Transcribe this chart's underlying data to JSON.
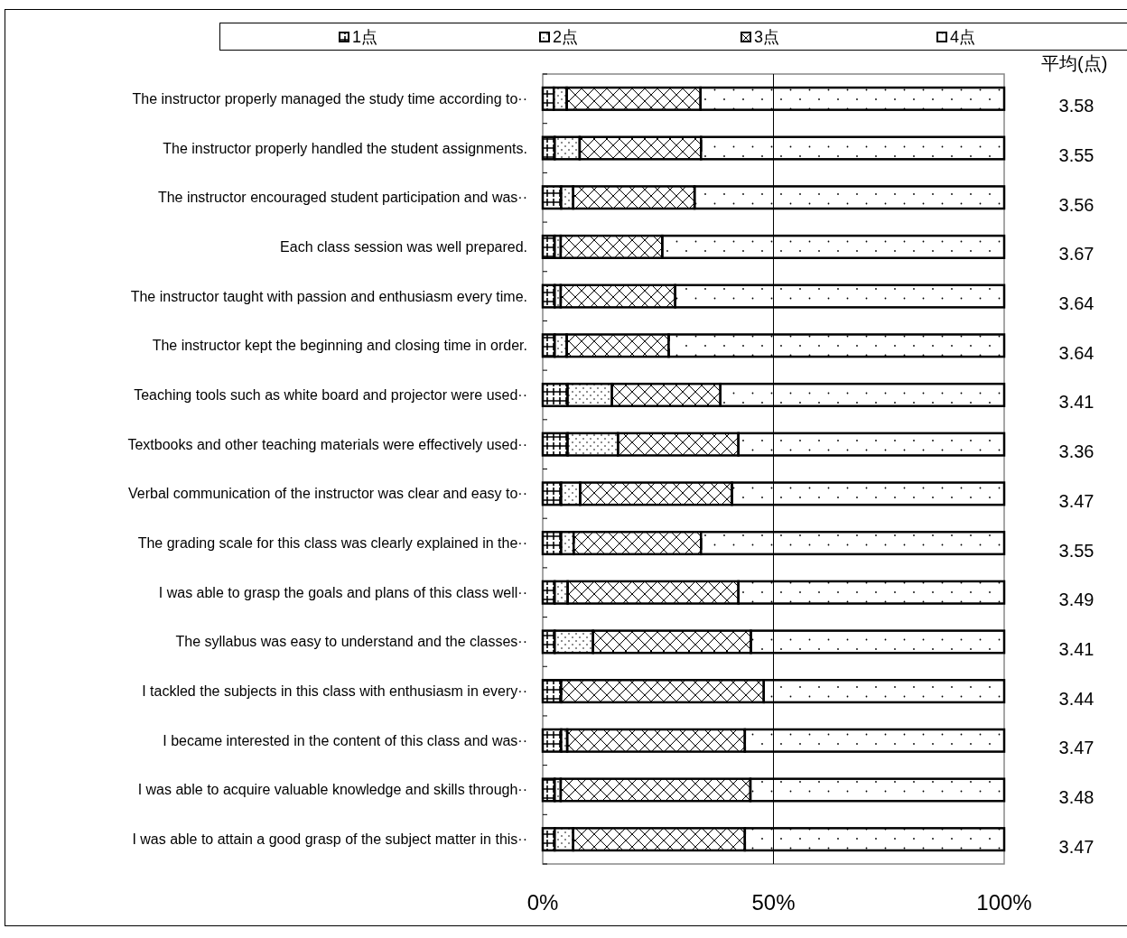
{
  "chart_data": {
    "type": "bar",
    "orientation": "horizontal",
    "stacked": true,
    "categories": [
      "The instructor properly managed the study time according to··",
      "The instructor properly handled the student assignments.",
      "The instructor encouraged student participation and was··",
      "Each class session was well prepared.",
      "The instructor taught with passion and enthusiasm every time.",
      "The instructor kept the beginning and closing time in order.",
      "Teaching tools such as white board and projector were used··",
      "Textbooks and other teaching materials were effectively used··",
      "Verbal communication of the instructor was clear and easy to··",
      "The grading scale for this class was clearly explained in the··",
      "I was able to grasp the goals and plans of this class well··",
      "The syllabus was easy to understand and the classes··",
      "I tackled the subjects in this class with enthusiasm in every··",
      "I became interested in the content of this class and was··",
      "I was able to acquire valuable knowledge and skills through··",
      "I was able to attain a good grasp of the subject matter in this··"
    ],
    "series": [
      {
        "name": "1点",
        "values": [
          2.4,
          2.6,
          4.0,
          2.6,
          2.6,
          2.6,
          5.4,
          5.4,
          4.0,
          4.0,
          2.6,
          2.6,
          4.0,
          4.0,
          2.6,
          2.6
        ]
      },
      {
        "name": "2点",
        "values": [
          2.8,
          5.4,
          2.6,
          1.3,
          1.3,
          2.6,
          9.6,
          10.9,
          4.1,
          2.7,
          2.8,
          8.3,
          0,
          1.3,
          1.3,
          4.0
        ]
      },
      {
        "name": "3点",
        "values": [
          29.0,
          26.3,
          26.3,
          22.0,
          24.8,
          22.1,
          23.5,
          26.1,
          32.9,
          27.6,
          37.0,
          34.2,
          43.9,
          38.5,
          41.1,
          37.2
        ]
      },
      {
        "name": "4点",
        "values": [
          65.8,
          65.7,
          67.1,
          74.1,
          71.3,
          72.7,
          61.5,
          57.6,
          59.0,
          65.7,
          57.6,
          54.9,
          52.1,
          56.2,
          55.0,
          56.2
        ]
      }
    ],
    "xlim": [
      0,
      100
    ],
    "xticks": [
      {
        "value": 0,
        "label": "0%"
      },
      {
        "value": 50,
        "label": "50%"
      },
      {
        "value": 100,
        "label": "100%"
      }
    ],
    "grid": "x",
    "legend": "top",
    "annotations": [
      "平均(点)",
      "3.58",
      "3.55",
      "3.56",
      "3.67",
      "3.64",
      "3.64",
      "3.41",
      "3.36",
      "3.47",
      "3.55",
      "3.49",
      "3.41",
      "3.44",
      "3.47",
      "3.48",
      "3.47"
    ]
  }
}
